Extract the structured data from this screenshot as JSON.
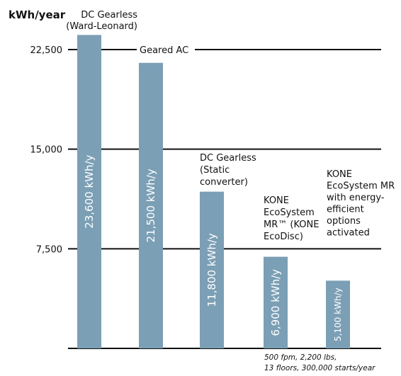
{
  "chart_data": {
    "type": "bar",
    "ylabel": "kWh/year",
    "ylim": [
      0,
      22500
    ],
    "yticks": [
      {
        "value": 22500,
        "label": "22,500"
      },
      {
        "value": 15000,
        "label": "15,000"
      },
      {
        "value": 7500,
        "label": "7,500"
      }
    ],
    "grid": true,
    "bar_color": "#7b9fb5",
    "categories": [
      "DC Gearless (Ward-Leonard)",
      "Geared AC",
      "DC Gearless (Static converter)",
      "KONE EcoSystem MR™ (KONE EcoDisc)",
      "KONE EcoSystem MR with energy-efficient options activated"
    ],
    "category_lines": [
      [
        "DC Gearless",
        "(Ward-Leonard)"
      ],
      [
        "Geared AC"
      ],
      [
        "DC Gearless",
        "(Static",
        "converter)"
      ],
      [
        "KONE",
        "EcoSystem",
        "MR™ (KONE",
        "EcoDisc)"
      ],
      [
        "KONE",
        "EcoSystem MR",
        "with energy-",
        "efficient",
        "options",
        "activated"
      ]
    ],
    "values": [
      23600,
      21500,
      11800,
      6900,
      5100
    ],
    "data_labels": [
      "23,600 kWh/y",
      "21,500 kWh/y",
      "11,800 kWh/y",
      "6,900 kWh/y",
      "5,100 kWh/y"
    ],
    "footnote": [
      "500 fpm, 2,200 lbs,",
      "13 floors, 300,000 starts/year"
    ]
  }
}
